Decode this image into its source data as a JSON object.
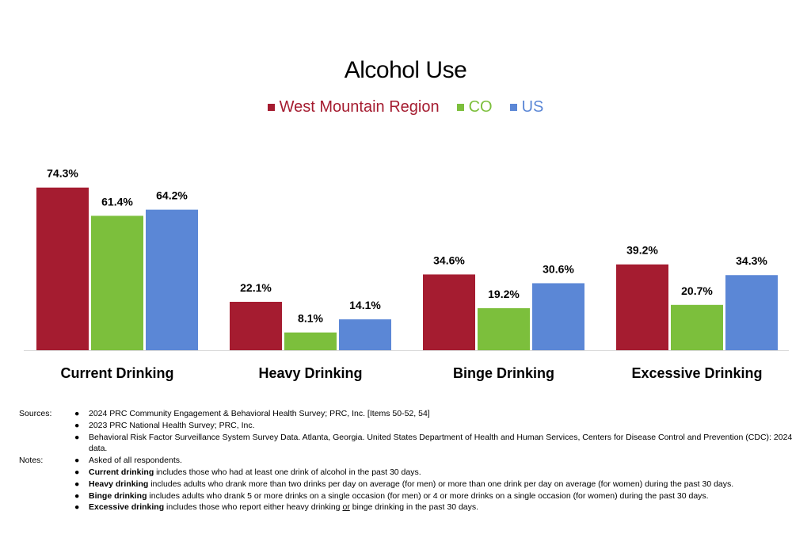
{
  "chart_data": {
    "type": "bar",
    "title": "Alcohol Use",
    "categories": [
      "Current Drinking",
      "Heavy Drinking",
      "Binge Drinking",
      "Excessive Drinking"
    ],
    "series": [
      {
        "name": "West Mountain Region",
        "color": "#a51c30",
        "values": [
          74.3,
          22.1,
          34.6,
          39.2
        ],
        "labels": [
          "74.3%",
          "22.1%",
          "34.6%",
          "39.2%"
        ]
      },
      {
        "name": "CO",
        "color": "#7cbf3c",
        "values": [
          61.4,
          8.1,
          19.2,
          20.7
        ],
        "labels": [
          "61.4%",
          "8.1%",
          "19.2%",
          "20.7%"
        ]
      },
      {
        "name": "US",
        "color": "#5b87d6",
        "values": [
          64.2,
          14.1,
          30.6,
          34.3
        ],
        "labels": [
          "64.2%",
          "14.1%",
          "30.6%",
          "34.3%"
        ]
      }
    ],
    "ylim": [
      0,
      80
    ],
    "legend": "top-center",
    "grid": false
  },
  "sources": {
    "heading": "Sources:",
    "items": [
      "2024 PRC Community Engagement & Behavioral Health Survey; PRC, Inc. [Items 50-52, 54]",
      "2023 PRC National Health Survey; PRC, Inc.",
      "Behavioral Risk Factor Surveillance System Survey Data. Atlanta, Georgia. United States Department of Health and Human Services, Centers for Disease Control and Prevention (CDC): 2024 data."
    ]
  },
  "notes": {
    "heading": "Notes:",
    "items": [
      {
        "bold": "",
        "text": "Asked of all respondents."
      },
      {
        "bold": "Current drinking",
        "text": " includes those who had at least one drink of alcohol in the past 30 days."
      },
      {
        "bold": "Heavy drinking",
        "text": " includes adults who drank more than two drinks per day on average (for men) or more than one drink per day on average (for women) during the past 30 days."
      },
      {
        "bold": "Binge drinking",
        "text": " includes adults who drank 5 or more drinks on a single occasion (for men) or 4 or more drinks on a single occasion (for women) during the past 30 days."
      },
      {
        "bold": "Excessive drinking",
        "text": " includes those who report either heavy drinking ",
        "underline": "or",
        "tail": " binge drinking in the past 30 days."
      }
    ]
  }
}
